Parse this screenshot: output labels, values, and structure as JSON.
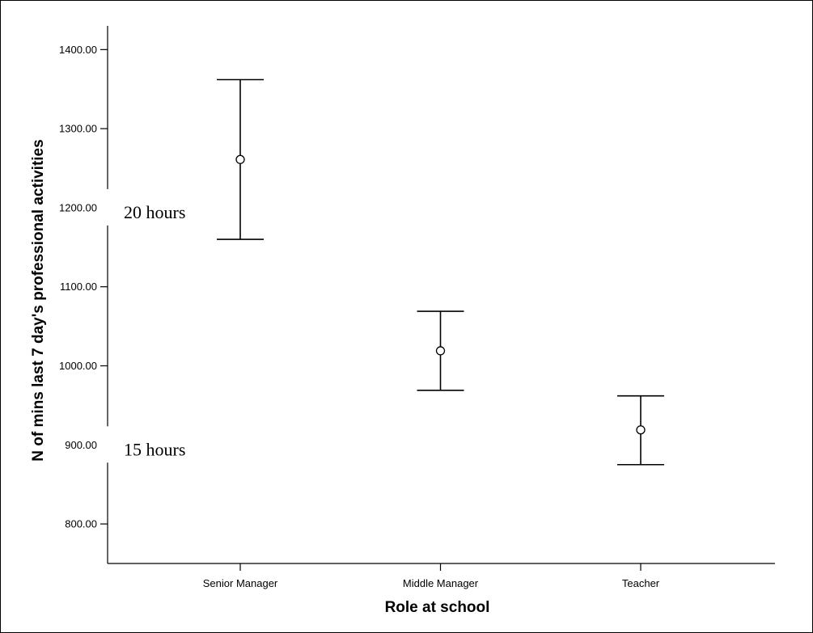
{
  "chart_data": {
    "type": "errorbar",
    "title": "",
    "xlabel": "Role at school",
    "ylabel": "N of mins last 7 day's professional activities",
    "categories": [
      "Senior Manager",
      "Middle Manager",
      "Teacher"
    ],
    "series": [
      {
        "means": [
          1261,
          1019,
          919
        ],
        "lower": [
          1160,
          969,
          875
        ],
        "upper": [
          1362,
          1069,
          962
        ]
      }
    ],
    "yticks": [
      "800.00",
      "900.00",
      "1000.00",
      "1100.00",
      "1200.00",
      "1300.00",
      "1400.00"
    ],
    "ylim": [
      750,
      1430
    ],
    "grid": false,
    "annotations": [
      {
        "text": "20 hours",
        "y": 1200
      },
      {
        "text": "15 hours",
        "y": 900
      }
    ]
  }
}
